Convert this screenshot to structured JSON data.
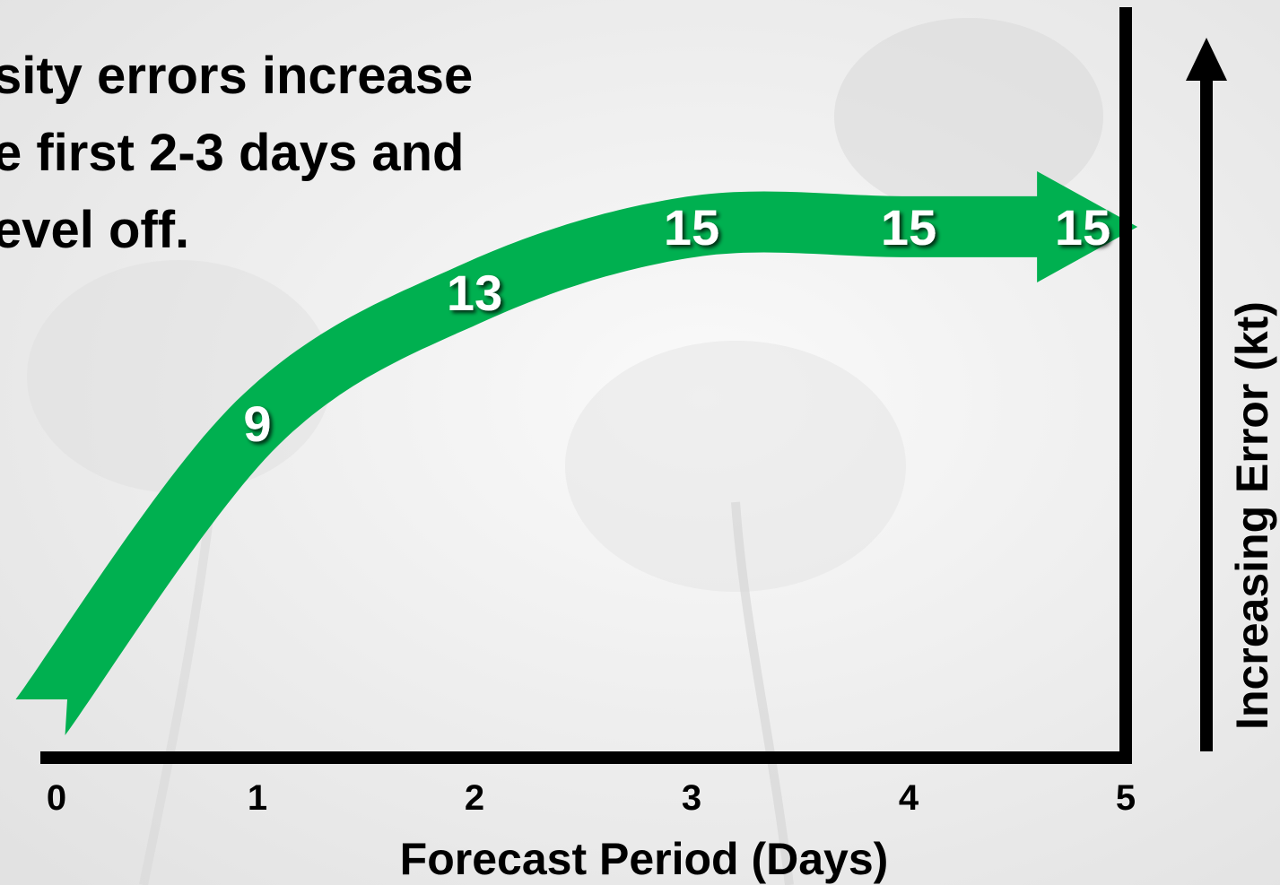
{
  "headline": {
    "lines": [
      "sity errors increase",
      "e first 2-3 days and",
      "evel off."
    ]
  },
  "colors": {
    "arrow": "#00b050",
    "axis": "#000000",
    "label_text": "#ffffff",
    "background": "#f1f1f1"
  },
  "chart_data": {
    "type": "line",
    "title": "",
    "xlabel": "Forecast Period (Days)",
    "ylabel": "Increasing Error (kt)",
    "x_ticks": [
      "0",
      "1",
      "2",
      "3",
      "4",
      "5"
    ],
    "xlim": [
      0,
      5
    ],
    "ylim": [
      0,
      17
    ],
    "grid": false,
    "legend": "none",
    "series": [
      {
        "x": [
          0,
          1,
          2,
          3,
          4,
          5
        ],
        "values": [
          0,
          9,
          13,
          15,
          15,
          15
        ],
        "data_labels": [
          "",
          "9",
          "13",
          "15",
          "15",
          "15"
        ]
      }
    ]
  }
}
